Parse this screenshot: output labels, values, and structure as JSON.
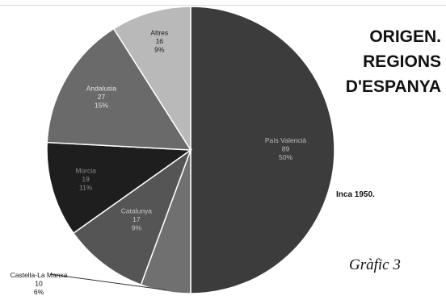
{
  "chart_data": {
    "type": "pie",
    "title_lines": [
      "ORIGEN.",
      "REGIONS",
      "D'ESPANYA"
    ],
    "subtitle": "Inca 1950.",
    "caption": "Gràfic 3",
    "slices": [
      {
        "label": "País Valencià",
        "value": 89,
        "percent": "50%",
        "color": "#3c3c3c",
        "text_color": "#bdbdbd"
      },
      {
        "label": "Castella-La Manxa",
        "value": 10,
        "percent": "6%",
        "color": "#707070",
        "text_color": "#111111"
      },
      {
        "label": "Catalunya",
        "value": 17,
        "percent": "9%",
        "color": "#555555",
        "text_color": "#c8c8c8"
      },
      {
        "label": "Múrcia",
        "value": 19,
        "percent": "11%",
        "color": "#1e1e1e",
        "text_color": "#8a8a8a"
      },
      {
        "label": "Andalusia",
        "value": 27,
        "percent": "15%",
        "color": "#6a6a6a",
        "text_color": "#e6e6e6"
      },
      {
        "label": "Altres",
        "value": 16,
        "percent": "9%",
        "color": "#b9b9b9",
        "text_color": "#1a1a1a"
      }
    ],
    "start": "12 o'clock",
    "direction": "clockwise",
    "legend": "none"
  }
}
